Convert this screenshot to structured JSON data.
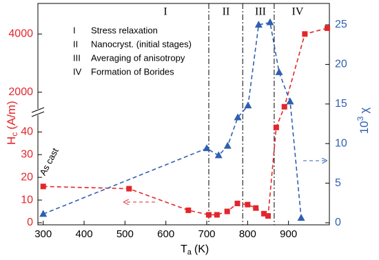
{
  "chart_data": {
    "type": "line",
    "x_label": {
      "main": "T",
      "sub": "a",
      "unit": "(K)"
    },
    "y_label": {
      "main": "H",
      "sub": "c",
      "unit": "(A/m)"
    },
    "y2_label": {
      "main": "10",
      "sup": "3",
      "symbol": "χ"
    },
    "xlim": [
      287,
      1000
    ],
    "xticks": [
      300,
      400,
      500,
      600,
      700,
      800,
      900
    ],
    "y_segments": [
      {
        "ylim": [
          0,
          48
        ],
        "yticks": [
          0,
          10,
          20,
          30,
          40
        ]
      },
      {
        "ylim": [
          1400,
          5050
        ],
        "yticks": [
          2000,
          4000
        ]
      }
    ],
    "y2lim": [
      0,
      27.7
    ],
    "y2ticks": [
      0,
      5,
      10,
      15,
      20,
      25
    ],
    "stage_boundaries": [
      705,
      788,
      865
    ],
    "stages": [
      {
        "numeral": "I",
        "label": "Stress relaxation"
      },
      {
        "numeral": "II",
        "label": "Nanocryst. (initial stages)"
      },
      {
        "numeral": "III",
        "label": "Averaging of anisotropy"
      },
      {
        "numeral": "IV",
        "label": "Formation of Borides"
      }
    ],
    "annotation": "As cast",
    "series": [
      {
        "name": "Hc",
        "color": "#e3262b",
        "marker": "square",
        "x": [
          300,
          510,
          655,
          705,
          725,
          750,
          775,
          800,
          820,
          840,
          850,
          870,
          890,
          940,
          995
        ],
        "values": [
          16,
          15,
          5.5,
          3.5,
          3.5,
          5,
          8.5,
          8,
          6.5,
          4,
          3,
          42,
          1500,
          4000,
          4200
        ]
      },
      {
        "name": "χ",
        "color": "#2f5fb0",
        "marker": "triangle",
        "axis": "y2",
        "x": [
          300,
          700,
          729,
          751,
          776,
          801,
          827,
          855,
          877,
          904,
          931
        ],
        "values": [
          1.1,
          9.4,
          8.5,
          9.7,
          13.3,
          14.8,
          25,
          25.3,
          19,
          15.3,
          0.6
        ]
      }
    ]
  }
}
